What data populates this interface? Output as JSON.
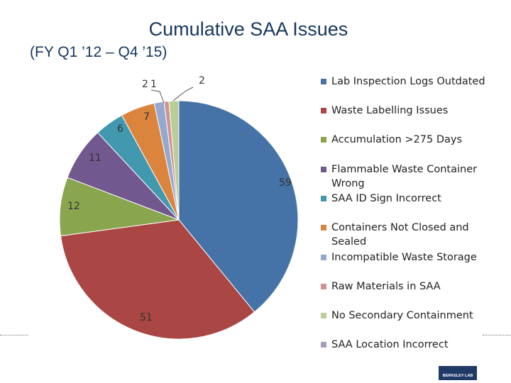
{
  "title": "Cumulative SAA Issues",
  "subtitle": "(FY Q1 ’12 – Q4 ’15)",
  "logo_text": "BERKELEY LAB",
  "chart_data": {
    "type": "pie",
    "title": "Cumulative SAA Issues",
    "subtitle": "(FY Q1 ’12 – Q4 ’15)",
    "legend_position": "right",
    "start_angle_deg": 0,
    "direction": "clockwise",
    "slices": [
      {
        "label": "Lab Inspection Logs Outdated",
        "value": 59,
        "color": "#4572a7"
      },
      {
        "label": "Waste Labelling Issues",
        "value": 51,
        "color": "#aa4643"
      },
      {
        "label": "Accumulation >275 Days",
        "value": 12,
        "color": "#89a54e"
      },
      {
        "label": "Flammable Waste Container Wrong",
        "value": 11,
        "color": "#71588f"
      },
      {
        "label": "SAA ID Sign Incorrect",
        "value": 6,
        "color": "#4198af"
      },
      {
        "label": "Containers Not Closed and Sealed",
        "value": 7,
        "color": "#db843d"
      },
      {
        "label": "Incompatible Waste Storage",
        "value": 2,
        "color": "#93a9cf"
      },
      {
        "label": "Raw Materials in SAA",
        "value": 1,
        "color": "#d19392"
      },
      {
        "label": "No Secondary Containment",
        "value": 2,
        "color": "#b9cd96"
      },
      {
        "label": "SAA Location Incorrect",
        "value": 0,
        "color": "#a99bbd"
      }
    ]
  }
}
